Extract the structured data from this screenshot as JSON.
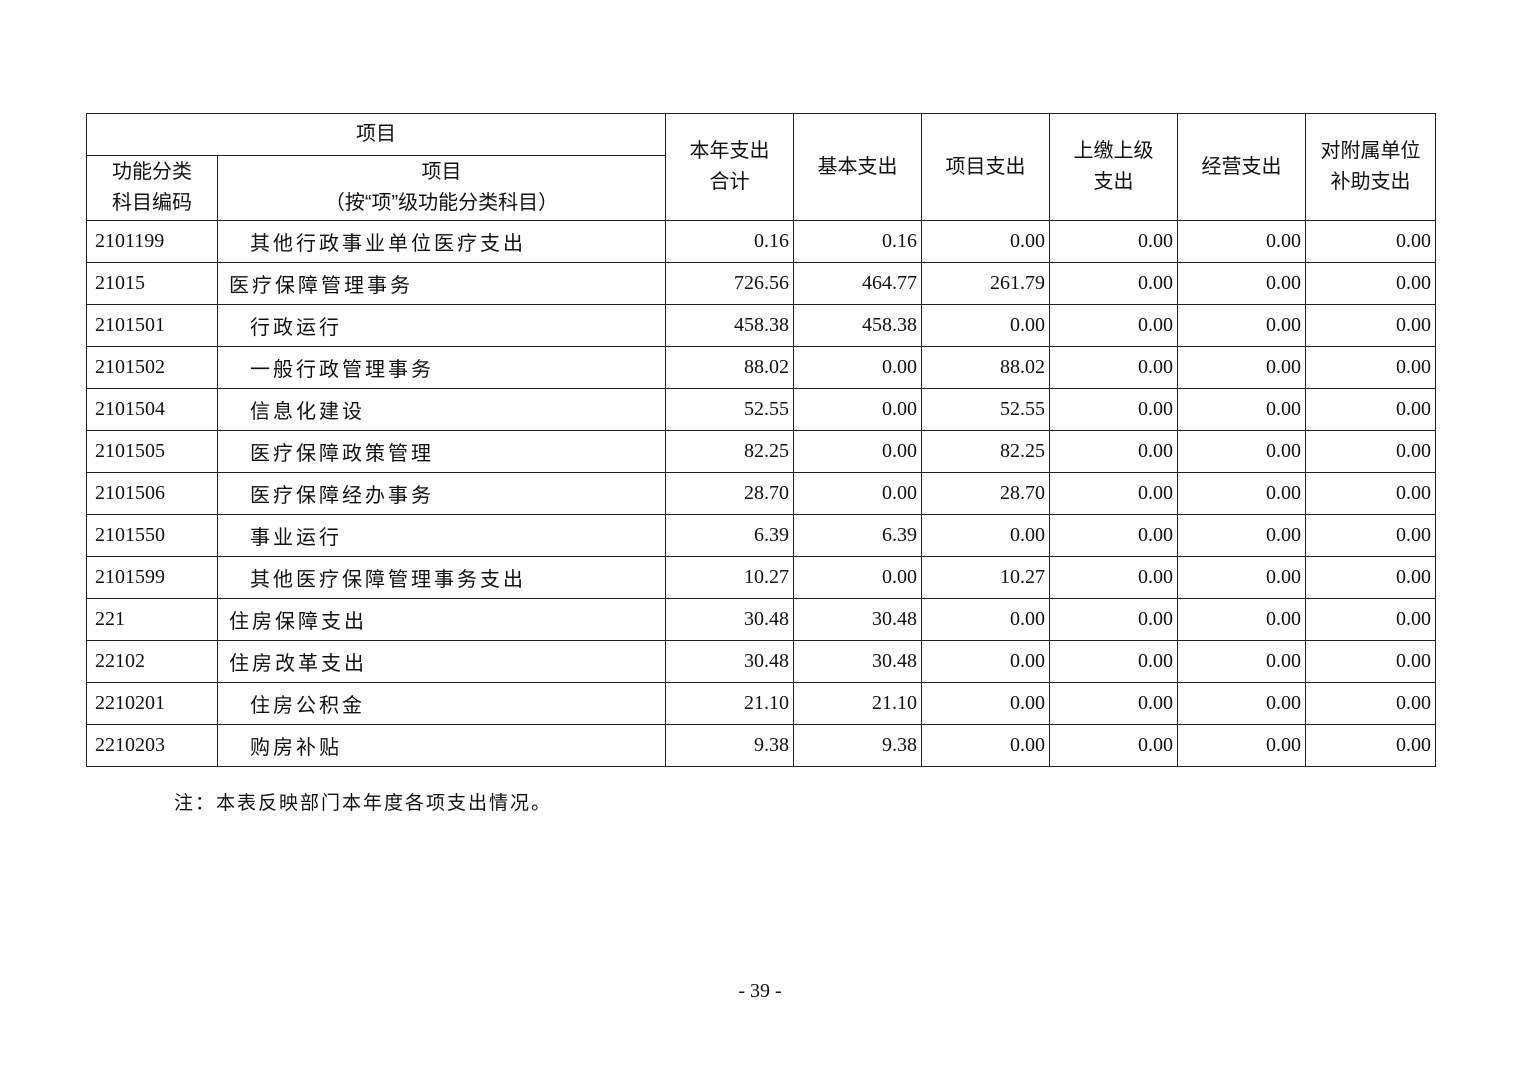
{
  "header": {
    "group": "项目",
    "code": "功能分类\n科目编码",
    "code_l1": "功能分类",
    "code_l2": "科目编码",
    "item_l1": "项目",
    "item_l2": "（按“项”级功能分类科目）",
    "total_l1": "本年支出",
    "total_l2": "合计",
    "basic": "基本支出",
    "project": "项目支出",
    "upper_l1": "上缴上级",
    "upper_l2": "支出",
    "business": "经营支出",
    "subsidy_l1": "对附属单位",
    "subsidy_l2": "补助支出"
  },
  "rows": [
    {
      "code": "2101199",
      "name": "其他行政事业单位医疗支出",
      "sub": true,
      "total": "0.16",
      "basic": "0.16",
      "project": "0.00",
      "upper": "0.00",
      "business": "0.00",
      "subsidy": "0.00"
    },
    {
      "code": "21015",
      "name": "医疗保障管理事务",
      "sub": false,
      "total": "726.56",
      "basic": "464.77",
      "project": "261.79",
      "upper": "0.00",
      "business": "0.00",
      "subsidy": "0.00"
    },
    {
      "code": "2101501",
      "name": "行政运行",
      "sub": true,
      "total": "458.38",
      "basic": "458.38",
      "project": "0.00",
      "upper": "0.00",
      "business": "0.00",
      "subsidy": "0.00"
    },
    {
      "code": "2101502",
      "name": "一般行政管理事务",
      "sub": true,
      "total": "88.02",
      "basic": "0.00",
      "project": "88.02",
      "upper": "0.00",
      "business": "0.00",
      "subsidy": "0.00"
    },
    {
      "code": "2101504",
      "name": "信息化建设",
      "sub": true,
      "total": "52.55",
      "basic": "0.00",
      "project": "52.55",
      "upper": "0.00",
      "business": "0.00",
      "subsidy": "0.00"
    },
    {
      "code": "2101505",
      "name": "医疗保障政策管理",
      "sub": true,
      "total": "82.25",
      "basic": "0.00",
      "project": "82.25",
      "upper": "0.00",
      "business": "0.00",
      "subsidy": "0.00"
    },
    {
      "code": "2101506",
      "name": "医疗保障经办事务",
      "sub": true,
      "total": "28.70",
      "basic": "0.00",
      "project": "28.70",
      "upper": "0.00",
      "business": "0.00",
      "subsidy": "0.00"
    },
    {
      "code": "2101550",
      "name": "事业运行",
      "sub": true,
      "total": "6.39",
      "basic": "6.39",
      "project": "0.00",
      "upper": "0.00",
      "business": "0.00",
      "subsidy": "0.00"
    },
    {
      "code": "2101599",
      "name": "其他医疗保障管理事务支出",
      "sub": true,
      "total": "10.27",
      "basic": "0.00",
      "project": "10.27",
      "upper": "0.00",
      "business": "0.00",
      "subsidy": "0.00"
    },
    {
      "code": "221",
      "name": "住房保障支出",
      "sub": false,
      "total": "30.48",
      "basic": "30.48",
      "project": "0.00",
      "upper": "0.00",
      "business": "0.00",
      "subsidy": "0.00"
    },
    {
      "code": "22102",
      "name": "住房改革支出",
      "sub": false,
      "total": "30.48",
      "basic": "30.48",
      "project": "0.00",
      "upper": "0.00",
      "business": "0.00",
      "subsidy": "0.00"
    },
    {
      "code": "2210201",
      "name": "住房公积金",
      "sub": true,
      "total": "21.10",
      "basic": "21.10",
      "project": "0.00",
      "upper": "0.00",
      "business": "0.00",
      "subsidy": "0.00"
    },
    {
      "code": "2210203",
      "name": "购房补贴",
      "sub": true,
      "total": "9.38",
      "basic": "9.38",
      "project": "0.00",
      "upper": "0.00",
      "business": "0.00",
      "subsidy": "0.00"
    }
  ],
  "note": "注：本表反映部门本年度各项支出情况。",
  "page_number": "- 39 -"
}
